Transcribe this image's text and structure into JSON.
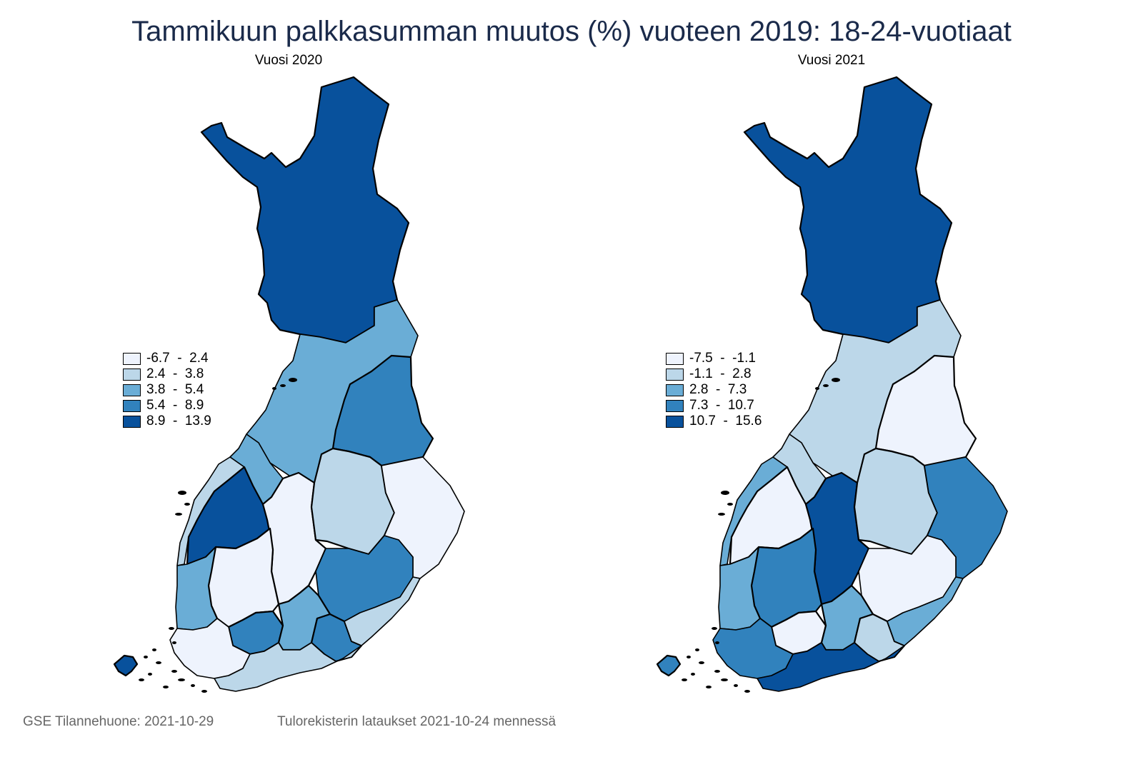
{
  "title": "Tammikuun palkkasumman muutos (%) vuoteen 2019: 18-24-vuotiaat",
  "colors": {
    "c1": "#eef3fd",
    "c2": "#bcd7e9",
    "c3": "#6aadd6",
    "c4": "#3182bd",
    "c5": "#08519c",
    "title": "#1a2a4a"
  },
  "maps": [
    {
      "subtitle": "Vuosi 2020",
      "legend": [
        "-6.7  -  2.4",
        "2.4  -  3.8",
        "3.8  -  5.4",
        "5.4  -  8.9",
        "8.9  -  13.9"
      ],
      "regions": {
        "lappi": "c5",
        "pohjois_pohjanmaa": "c3",
        "kainuu": "c4",
        "keski_pohjanmaa": "c3",
        "pohjanmaa": "c2",
        "etela_pohjanmaa": "c5",
        "keski_suomi": "c1",
        "pohjois_savo": "c2",
        "pohjois_karjala": "c1",
        "satakunta": "c3",
        "pirkanmaa": "c1",
        "etela_savo": "c4",
        "kanta_hame": "c4",
        "paijat_hame": "c3",
        "kymenlaakso": "c4",
        "etela_karjala": "c2",
        "varsinais_suomi": "c1",
        "uusimaa": "c2",
        "ahvenanmaa": "c5"
      }
    },
    {
      "subtitle": "Vuosi 2021",
      "legend": [
        "-7.5  -  -1.1",
        "-1.1  -  2.8",
        "2.8  -  7.3",
        "7.3  -  10.7",
        "10.7  -  15.6"
      ],
      "regions": {
        "lappi": "c5",
        "pohjois_pohjanmaa": "c2",
        "kainuu": "c1",
        "keski_pohjanmaa": "c2",
        "pohjanmaa": "c3",
        "etela_pohjanmaa": "c1",
        "keski_suomi": "c5",
        "pohjois_savo": "c2",
        "pohjois_karjala": "c4",
        "satakunta": "c3",
        "pirkanmaa": "c4",
        "etela_savo": "c1",
        "kanta_hame": "c1",
        "paijat_hame": "c3",
        "kymenlaakso": "c2",
        "etela_karjala": "c3",
        "varsinais_suomi": "c4",
        "uusimaa": "c5",
        "ahvenanmaa": "c4"
      }
    }
  ],
  "footer": {
    "left": "GSE Tilannehuone: 2021-10-29",
    "right": "Tulorekisterin lataukset 2021-10-24 mennessä"
  }
}
